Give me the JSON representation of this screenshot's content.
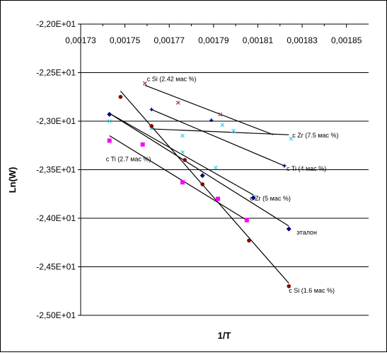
{
  "chart_data": {
    "type": "scatter",
    "title": "",
    "xlabel": "1/T",
    "ylabel": "Ln(W)",
    "xlim": [
      0.00173,
      0.00186
    ],
    "ylim": [
      -25.0,
      -22.0
    ],
    "x_ticks": [
      0.00173,
      0.00175,
      0.00177,
      0.00179,
      0.00181,
      0.00183,
      0.00185
    ],
    "x_tick_labels": [
      "0,00173",
      "0,00175",
      "0,00177",
      "0,00179",
      "0,00181",
      "0,00183",
      "0,00185"
    ],
    "y_ticks": [
      -22.0,
      -22.5,
      -23.0,
      -23.5,
      -24.0,
      -24.5,
      -25.0
    ],
    "y_tick_labels": [
      "-2,20E+01",
      "-2,25E+01",
      "-2,30E+01",
      "-2,35E+01",
      "-2,40E+01",
      "-2,45E+01",
      "-2,50E+01"
    ],
    "x_axis_position": "top",
    "grid": "horizontal",
    "series": [
      {
        "name": "c Si (2.42 мас %)",
        "color": "#993366",
        "marker": "x",
        "points": [
          [
            0.001759,
            -22.61
          ],
          [
            0.001774,
            -22.81
          ],
          [
            0.001793,
            -22.93
          ]
        ],
        "trend": [
          [
            0.001759,
            -22.63
          ],
          [
            0.001817,
            -23.14
          ]
        ]
      },
      {
        "name": "c Zr (7.5 мас %)",
        "color": "#33ccff",
        "marker": "x",
        "points": [
          [
            0.001762,
            -23.07
          ],
          [
            0.001776,
            -23.15
          ],
          [
            0.001794,
            -23.04
          ],
          [
            0.001799,
            -23.1
          ],
          [
            0.001825,
            -23.18
          ]
        ],
        "trend": [
          [
            0.001762,
            -23.08
          ],
          [
            0.001824,
            -23.14
          ]
        ]
      },
      {
        "name": "c Ti (4 мас %)",
        "color": "#000080",
        "marker": "plus",
        "points": [
          [
            0.001762,
            -22.88
          ],
          [
            0.001789,
            -22.99
          ],
          [
            0.001822,
            -23.46
          ]
        ],
        "trend": [
          [
            0.001762,
            -22.88
          ],
          [
            0.001822,
            -23.46
          ]
        ]
      },
      {
        "name": "c Zr (5 мас %)",
        "color": "#33cccc",
        "marker": "x",
        "points": [
          [
            0.001743,
            -23.0
          ],
          [
            0.001776,
            -23.32
          ],
          [
            0.001791,
            -23.48
          ],
          [
            0.001808,
            -23.78
          ]
        ],
        "trend": [
          [
            0.001743,
            -22.92
          ],
          [
            0.001808,
            -23.76
          ]
        ]
      },
      {
        "name": "эталон",
        "color": "#000080",
        "marker": "diamond",
        "points": [
          [
            0.001743,
            -22.93
          ],
          [
            0.001785,
            -23.56
          ],
          [
            0.001808,
            -23.79
          ],
          [
            0.001824,
            -24.11
          ]
        ],
        "trend": [
          [
            0.001743,
            -22.92
          ],
          [
            0.001824,
            -24.08
          ]
        ]
      },
      {
        "name": "c Ti (2.7 мас %)",
        "color": "#ff00ff",
        "marker": "square",
        "points": [
          [
            0.001743,
            -23.2
          ],
          [
            0.001758,
            -23.24
          ],
          [
            0.001776,
            -23.63
          ],
          [
            0.001792,
            -23.8
          ],
          [
            0.001805,
            -24.02
          ]
        ],
        "trend": [
          [
            0.001743,
            -23.15
          ],
          [
            0.001805,
            -24.02
          ]
        ]
      },
      {
        "name": "c Si (1.6 мас %)",
        "color": "#800000",
        "marker": "circle",
        "points": [
          [
            0.001748,
            -22.75
          ],
          [
            0.001762,
            -23.05
          ],
          [
            0.001777,
            -23.4
          ],
          [
            0.001785,
            -23.65
          ],
          [
            0.001806,
            -24.23
          ],
          [
            0.001824,
            -24.7
          ]
        ],
        "trend": [
          [
            0.001748,
            -22.69
          ],
          [
            0.001824,
            -24.67
          ]
        ]
      }
    ]
  }
}
